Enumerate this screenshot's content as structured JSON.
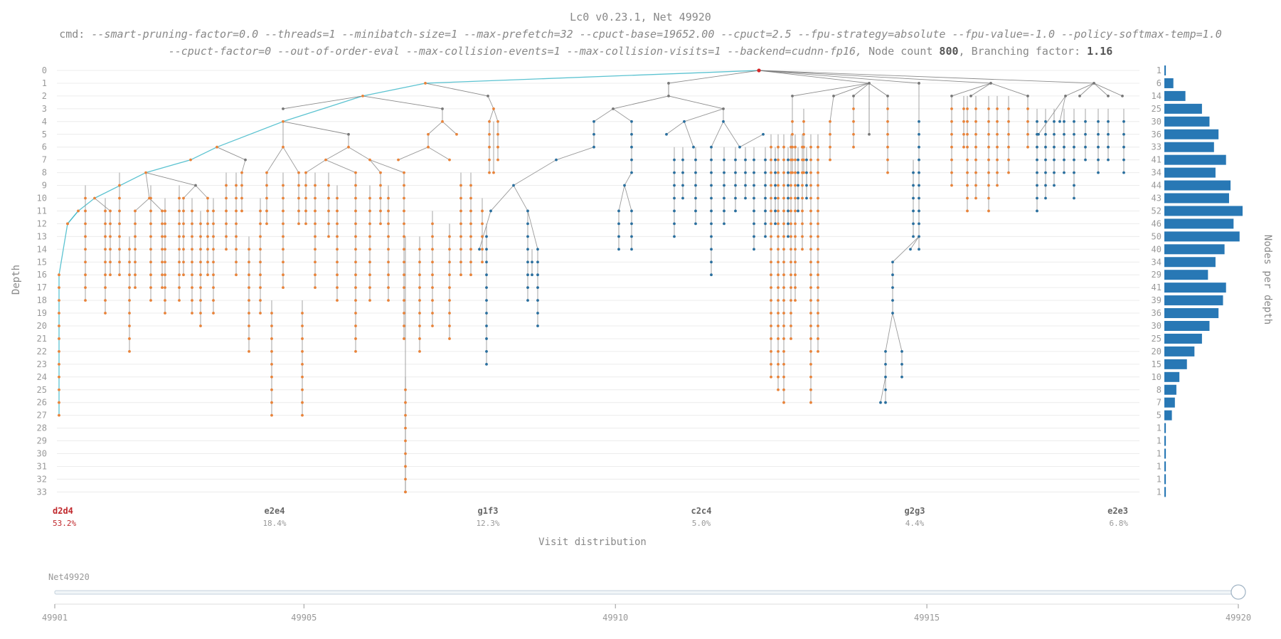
{
  "header": {
    "title": "Lc0 v0.23.1, Net 49920",
    "cmd_prefix": "cmd:",
    "cmd_line1": "--smart-pruning-factor=0.0 --threads=1 --minibatch-size=1 --max-prefetch=32 --cpuct-base=19652.00 --cpuct=2.5 --fpu-strategy=absolute --fpu-value=-1.0 --policy-softmax-temp=1.0",
    "cmd_line2": "--cpuct-factor=0 --out-of-order-eval --max-collision-events=1 --max-collision-visits=1 --backend=cudnn-fp16,",
    "node_count_label": "Node count",
    "node_count": "800",
    "branching_label": ", Branching factor:",
    "branching_factor": "1.16"
  },
  "colors": {
    "tree_blue": "#2a6f9e",
    "tree_orange": "#e8833a",
    "best_line": "#3fb8c9",
    "bar": "#2878b5",
    "root": "#d62728",
    "best_move": "#c0282c"
  },
  "chart_data": [
    {
      "type": "tree",
      "ylabel": "Depth",
      "xlabel": "Visit distribution",
      "depth_range": [
        0,
        33
      ],
      "depth_ticks": [
        0,
        1,
        2,
        3,
        4,
        5,
        6,
        7,
        8,
        9,
        10,
        11,
        12,
        13,
        14,
        15,
        16,
        17,
        18,
        19,
        20,
        21,
        22,
        23,
        24,
        25,
        26,
        27,
        28,
        29,
        30,
        31,
        32,
        33
      ],
      "moves": [
        {
          "move": "d2d4",
          "visits": "53.2%",
          "best": true
        },
        {
          "move": "e2e4",
          "visits": "18.4%",
          "best": false
        },
        {
          "move": "g1f3",
          "visits": "12.3%",
          "best": false
        },
        {
          "move": "c2c4",
          "visits": "5.0%",
          "best": false
        },
        {
          "move": "g2g3",
          "visits": "4.4%",
          "best": false
        },
        {
          "move": "e2e3",
          "visits": "6.8%",
          "best": false
        }
      ],
      "grid": true
    },
    {
      "type": "bar",
      "orientation": "horizontal",
      "ylabel": "Nodes per depth",
      "categories": [
        0,
        1,
        2,
        3,
        4,
        5,
        6,
        7,
        8,
        9,
        10,
        11,
        12,
        13,
        14,
        15,
        16,
        17,
        18,
        19,
        20,
        21,
        22,
        23,
        24,
        25,
        26,
        27,
        28,
        29,
        30,
        31,
        32,
        33
      ],
      "values": [
        1,
        6,
        14,
        25,
        30,
        36,
        33,
        41,
        34,
        44,
        43,
        52,
        46,
        50,
        40,
        34,
        29,
        41,
        39,
        36,
        30,
        25,
        20,
        15,
        10,
        8,
        7,
        5,
        1,
        1,
        1,
        1,
        1,
        1
      ],
      "xlim": [
        0,
        52
      ]
    }
  ],
  "slider": {
    "label": "Net49920",
    "ticks": [
      "49901",
      "49905",
      "49910",
      "49915",
      "49920"
    ],
    "min": 49901,
    "max": 49920,
    "value": 49920
  }
}
